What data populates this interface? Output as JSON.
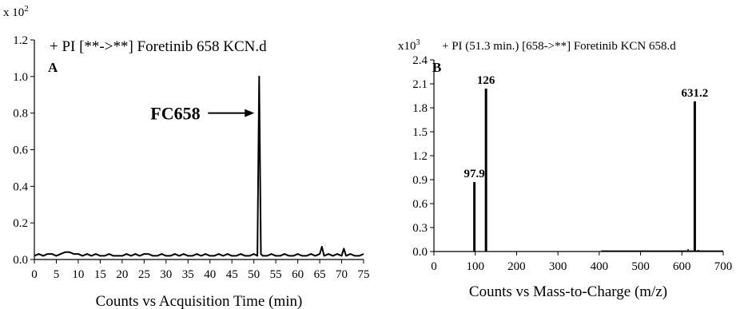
{
  "chart_data": [
    {
      "type": "line",
      "panel": "A",
      "multiplier": {
        "base": "x 10",
        "exp": "2"
      },
      "title": "+ PI [**->**] Foretinib 658 KCN.d",
      "xlabel": "Counts vs Acquisition Time (min)",
      "ylabel": "",
      "xlim": [
        0,
        75
      ],
      "ylim": [
        0,
        1.2
      ],
      "x_ticks": [
        "0",
        "5",
        "10",
        "15",
        "20",
        "25",
        "30",
        "35",
        "40",
        "45",
        "50",
        "55",
        "60",
        "65",
        "70",
        "75"
      ],
      "y_ticks": [
        "0.0",
        "0.2",
        "0.4",
        "0.6",
        "0.8",
        "1.0",
        "1.2"
      ],
      "series": [
        {
          "x": [
            0,
            1,
            2,
            3,
            4,
            5,
            6,
            7,
            8,
            9,
            10,
            11,
            12,
            13,
            14,
            15,
            16,
            17,
            18,
            19,
            20,
            21,
            22,
            23,
            24,
            25,
            26,
            27,
            28,
            29,
            30,
            31,
            32,
            33,
            34,
            35,
            36,
            37,
            38,
            39,
            40,
            41,
            42,
            43,
            44,
            45,
            46,
            47,
            48,
            49,
            50,
            50.8,
            51.2,
            51.6,
            52,
            53,
            54,
            55,
            56,
            57,
            58,
            59,
            60,
            61,
            62,
            63,
            64,
            65,
            65.5,
            66,
            67,
            68,
            69,
            70,
            70.5,
            71,
            72,
            73,
            74,
            75
          ],
          "values": [
            0.02,
            0.03,
            0.02,
            0.03,
            0.03,
            0.02,
            0.03,
            0.04,
            0.04,
            0.03,
            0.03,
            0.02,
            0.03,
            0.02,
            0.03,
            0.02,
            0.02,
            0.03,
            0.02,
            0.02,
            0.02,
            0.03,
            0.02,
            0.03,
            0.02,
            0.03,
            0.03,
            0.02,
            0.02,
            0.03,
            0.02,
            0.02,
            0.03,
            0.02,
            0.03,
            0.02,
            0.02,
            0.03,
            0.02,
            0.03,
            0.02,
            0.02,
            0.03,
            0.02,
            0.03,
            0.02,
            0.02,
            0.03,
            0.02,
            0.02,
            0.03,
            0.02,
            1.0,
            0.03,
            0.02,
            0.02,
            0.03,
            0.02,
            0.02,
            0.03,
            0.02,
            0.02,
            0.03,
            0.02,
            0.02,
            0.03,
            0.02,
            0.03,
            0.07,
            0.02,
            0.03,
            0.02,
            0.03,
            0.02,
            0.06,
            0.02,
            0.03,
            0.02,
            0.02,
            0.03
          ]
        }
      ],
      "annotations": [
        {
          "text": "FC658",
          "x": 51.2,
          "y": 0.8
        }
      ]
    },
    {
      "type": "bar",
      "panel": "B",
      "multiplier": {
        "base": "x10",
        "exp": "3"
      },
      "title": "+ PI (51.3 min.) [658->**] Foretinib KCN 658.d",
      "xlabel": "Counts vs Mass-to-Charge (m/z)",
      "ylabel": "",
      "xlim": [
        0,
        700
      ],
      "ylim": [
        0,
        2.4
      ],
      "x_ticks": [
        "0",
        "100",
        "200",
        "300",
        "400",
        "500",
        "600",
        "700"
      ],
      "y_ticks": [
        "0.0",
        "0.3",
        "0.6",
        "0.9",
        "1.2",
        "1.5",
        "1.8",
        "2.1",
        "2.4"
      ],
      "peaks": [
        {
          "x": 97.9,
          "value": 0.87,
          "label": "97.9"
        },
        {
          "x": 126,
          "value": 2.04,
          "label": "126"
        },
        {
          "x": 631.2,
          "value": 1.88,
          "label": "631.2"
        },
        {
          "x": 615,
          "value": 0.03,
          "label": ""
        },
        {
          "x": 640,
          "value": 0.02,
          "label": ""
        },
        {
          "x": 420,
          "value": 0.01,
          "label": ""
        },
        {
          "x": 505,
          "value": 0.01,
          "label": ""
        },
        {
          "x": 570,
          "value": 0.01,
          "label": ""
        }
      ]
    }
  ]
}
